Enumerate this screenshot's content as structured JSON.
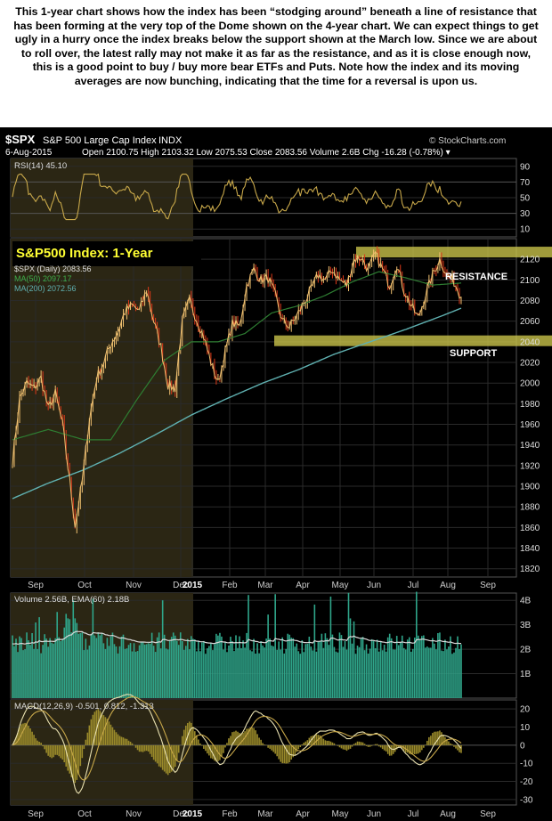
{
  "caption": "This 1-year chart shows how the index has been “stodging around” beneath a line of resistance that has been forming at the very top of the Dome shown on the 4-year chart. We can expect things to get ugly in a hurry once the index breaks below the support shown at the March low. Since we are about to roll over, the latest rally may not make it as far as the resistance, and as it is close enough now, this is a good point to buy / buy more bear ETFs and Puts. Note how the index and its moving averages are now bunching, indicating that the time for a reversal is upon us.",
  "header": {
    "symbol": "$SPX",
    "name": "S&P 500 Large Cap Index",
    "exchange": "INDX",
    "watermark": "© StockCharts.com",
    "date": "6-Aug-2015",
    "ohlc": "Open 2100.75   High 2103.32   Low 2075.53   Close 2083.56   Volume 2.6B   Chg -16.28 (-0.78%) ▾"
  },
  "colors": {
    "background": "#000000",
    "highlight_panel": "#2b2614",
    "price_up": "#f0c070",
    "price_down": "#e03a1a",
    "ma50": "#2e7d32",
    "ma200": "#5fb0b0",
    "annotation": "#c8c24a",
    "rsi_line": "#c8a84a",
    "volume_bar": "#2fa58a",
    "volume_ema": "#d8d8d8",
    "macd_hist": "#9a8a2a",
    "grid": "#333333"
  },
  "chart_data": [
    {
      "type": "line",
      "panel": "rsi",
      "legend": "RSI(14) 45.10",
      "y_ticks": [
        "90",
        "70",
        "50",
        "30",
        "10"
      ],
      "ylim": [
        0,
        100
      ],
      "levels": [
        70,
        30
      ],
      "last_value": 45.1
    },
    {
      "type": "line",
      "panel": "price",
      "title": "S&P500 Index: 1-Year",
      "legend": [
        "$SPX (Daily) 2083.56",
        "MA(50) 2097.17",
        "MA(200) 2072.56"
      ],
      "x_tick_labels": [
        "Sep",
        "Oct",
        "Nov",
        "Dec",
        "2015",
        "Feb",
        "Mar",
        "Apr",
        "May",
        "Jun",
        "Jul",
        "Aug",
        "Sep"
      ],
      "y_ticks": [
        "2120",
        "2100",
        "2080",
        "2060",
        "2040",
        "2020",
        "2000",
        "1980",
        "1960",
        "1940",
        "1920",
        "1900",
        "1880",
        "1860",
        "1840",
        "1820"
      ],
      "ylim": [
        1812,
        2140
      ],
      "annotations": [
        {
          "label": "RESISTANCE",
          "y": 2127
        },
        {
          "label": "SUPPORT",
          "y": 2041
        }
      ],
      "series": [
        {
          "name": "$SPX (Daily)",
          "last": 2083.56,
          "x": [
            0,
            4,
            8,
            12,
            16,
            20,
            24,
            28,
            32,
            35,
            39,
            43,
            47,
            51,
            55,
            59,
            63,
            67,
            71,
            75,
            79,
            83,
            87,
            91,
            95,
            99,
            103,
            107,
            111,
            115,
            119,
            123,
            127,
            131,
            135,
            139,
            143,
            147,
            151,
            155,
            159,
            163,
            167,
            171,
            175,
            179,
            183,
            187,
            191,
            195,
            199,
            203,
            207,
            211,
            215,
            219,
            223,
            227,
            231,
            235,
            239,
            243,
            247,
            251
          ],
          "values": [
            1925,
            1985,
            2000,
            1995,
            2005,
            1975,
            1990,
            1960,
            1905,
            1862,
            1905,
            1965,
            2005,
            2020,
            2038,
            2050,
            2070,
            2075,
            2070,
            2090,
            2060,
            2035,
            1998,
            1995,
            2060,
            2080,
            2062,
            2045,
            2020,
            2000,
            2030,
            2058,
            2055,
            2095,
            2110,
            2100,
            2102,
            2085,
            2060,
            2055,
            2065,
            2078,
            2090,
            2105,
            2100,
            2110,
            2100,
            2095,
            2120,
            2122,
            2110,
            2125,
            2110,
            2095,
            2115,
            2090,
            2075,
            2063,
            2085,
            2105,
            2120,
            2105,
            2098,
            2083.56
          ]
        },
        {
          "name": "MA(50)",
          "last": 2097.17,
          "x": [
            0,
            20,
            40,
            55,
            70,
            85,
            100,
            115,
            130,
            145,
            160,
            175,
            190,
            205,
            220,
            235,
            251
          ],
          "values": [
            1945,
            1955,
            1945,
            1945,
            1985,
            2022,
            2040,
            2040,
            2048,
            2068,
            2075,
            2085,
            2098,
            2108,
            2102,
            2095,
            2097
          ]
        },
        {
          "name": "MA(200)",
          "last": 2072.56,
          "x": [
            0,
            20,
            40,
            60,
            80,
            100,
            120,
            140,
            160,
            180,
            200,
            220,
            240,
            251
          ],
          "values": [
            1888,
            1903,
            1916,
            1932,
            1950,
            1969,
            1985,
            2000,
            2013,
            2028,
            2040,
            2052,
            2065,
            2072.56
          ]
        }
      ]
    },
    {
      "type": "bar",
      "panel": "volume",
      "legend": "Volume 2.56B, EMA(60) 2.18B",
      "y_ticks": [
        "4B",
        "3B",
        "2B",
        "1B"
      ],
      "ylim": [
        0,
        4.3
      ]
    },
    {
      "type": "line",
      "panel": "macd",
      "legend": "MACD(12,26,9) -0.501, 0.812, -1.313",
      "y_ticks": [
        "20",
        "10",
        "0",
        "-10",
        "-20",
        "-30"
      ],
      "ylim": [
        -33,
        25
      ],
      "x_tick_labels": [
        "Sep",
        "Oct",
        "Nov",
        "Dec",
        "2015",
        "Feb",
        "Mar",
        "Apr",
        "May",
        "Jun",
        "Jul",
        "Aug",
        "Sep"
      ]
    }
  ]
}
